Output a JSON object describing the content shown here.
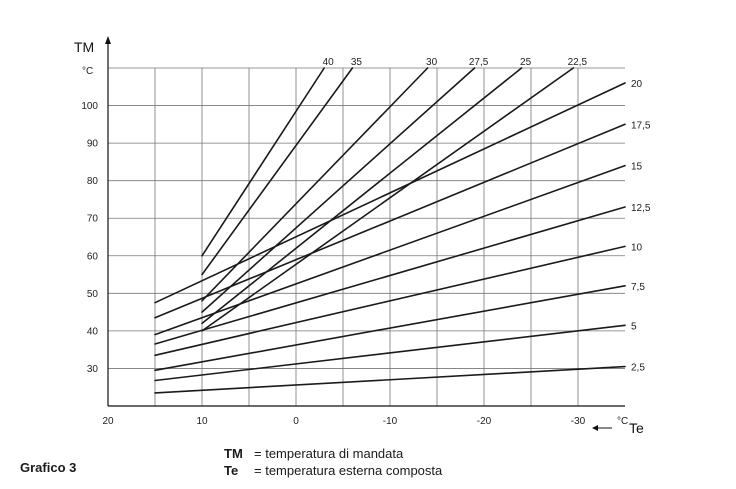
{
  "chart_data": {
    "type": "line",
    "title": "",
    "ylabel": "TM",
    "yunit": "°C",
    "xlabel": "Te",
    "xunit": "°C",
    "x_ticks": [
      20,
      10,
      0,
      -10,
      -20,
      -30
    ],
    "y_ticks": [
      30,
      40,
      50,
      60,
      70,
      80,
      90,
      100
    ],
    "xlim": [
      20,
      -35
    ],
    "ylim": [
      20,
      110
    ],
    "x_reversed": true,
    "grid": true,
    "series": [
      {
        "name": "2,5",
        "x": [
          15,
          -35
        ],
        "y": [
          23.5,
          30.5
        ]
      },
      {
        "name": "5",
        "x": [
          15,
          -35
        ],
        "y": [
          26.8,
          41.5
        ]
      },
      {
        "name": "7,5",
        "x": [
          15,
          -35
        ],
        "y": [
          29.5,
          52
        ]
      },
      {
        "name": "10",
        "x": [
          15,
          -35
        ],
        "y": [
          33.5,
          62.5
        ]
      },
      {
        "name": "12,5",
        "x": [
          15,
          -35
        ],
        "y": [
          36.5,
          73
        ]
      },
      {
        "name": "15",
        "x": [
          15,
          -35
        ],
        "y": [
          39,
          84
        ]
      },
      {
        "name": "17,5",
        "x": [
          15,
          -35
        ],
        "y": [
          43.5,
          95
        ]
      },
      {
        "name": "20",
        "x": [
          15,
          -35
        ],
        "y": [
          47.5,
          106
        ]
      },
      {
        "name": "22,5",
        "x": [
          10,
          -29.5
        ],
        "y": [
          40,
          110
        ]
      },
      {
        "name": "25",
        "x": [
          10,
          -24
        ],
        "y": [
          42,
          110
        ]
      },
      {
        "name": "27,5",
        "x": [
          10,
          -19
        ],
        "y": [
          45,
          110
        ]
      },
      {
        "name": "30",
        "x": [
          10,
          -14
        ],
        "y": [
          48,
          110
        ]
      },
      {
        "name": "35",
        "x": [
          10,
          -6
        ],
        "y": [
          55,
          110
        ]
      },
      {
        "name": "40",
        "x": [
          10,
          -3
        ],
        "y": [
          60,
          110
        ]
      }
    ]
  },
  "legend": {
    "tm_symbol": "TM",
    "tm_text": "= temperatura di mandata",
    "te_symbol": "Te",
    "te_text": "= temperatura esterna composta"
  },
  "caption": "Grafico 3"
}
